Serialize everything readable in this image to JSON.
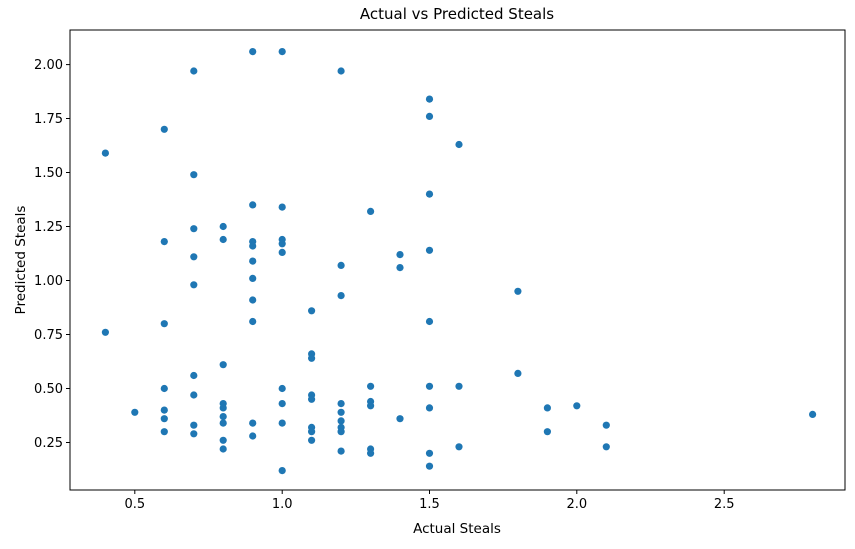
{
  "figure": {
    "title": "Actual vs Predicted Steals",
    "xlabel": "Actual Steals",
    "ylabel": "Predicted Steals"
  },
  "chart_data": {
    "type": "scatter",
    "title": "Actual vs Predicted Steals",
    "xlabel": "Actual Steals",
    "ylabel": "Predicted Steals",
    "xlim": [
      0.28,
      2.91
    ],
    "ylim": [
      0.03,
      2.16
    ],
    "grid": false,
    "legend_position": "none",
    "xticks": {
      "values": [
        0.5,
        1.0,
        1.5,
        2.0,
        2.5
      ],
      "labels": [
        "0.5",
        "1.0",
        "1.5",
        "2.0",
        "2.5"
      ]
    },
    "yticks": {
      "values": [
        0.25,
        0.5,
        0.75,
        1.0,
        1.25,
        1.5,
        1.75,
        2.0
      ],
      "labels": [
        "0.25",
        "0.50",
        "0.75",
        "1.00",
        "1.25",
        "1.50",
        "1.75",
        "2.00"
      ]
    },
    "marker": {
      "shape": "circle",
      "color": "#1f77b4",
      "radius_px": 3.6
    },
    "points": [
      [
        0.4,
        1.59
      ],
      [
        0.4,
        0.76
      ],
      [
        0.5,
        0.39
      ],
      [
        0.6,
        1.7
      ],
      [
        0.6,
        1.18
      ],
      [
        0.6,
        0.8
      ],
      [
        0.6,
        0.5
      ],
      [
        0.6,
        0.4
      ],
      [
        0.6,
        0.36
      ],
      [
        0.6,
        0.3
      ],
      [
        0.7,
        1.97
      ],
      [
        0.7,
        1.49
      ],
      [
        0.7,
        1.24
      ],
      [
        0.7,
        1.11
      ],
      [
        0.7,
        0.98
      ],
      [
        0.7,
        0.56
      ],
      [
        0.7,
        0.47
      ],
      [
        0.7,
        0.33
      ],
      [
        0.7,
        0.29
      ],
      [
        0.8,
        1.25
      ],
      [
        0.8,
        1.19
      ],
      [
        0.8,
        0.61
      ],
      [
        0.8,
        0.43
      ],
      [
        0.8,
        0.41
      ],
      [
        0.8,
        0.37
      ],
      [
        0.8,
        0.34
      ],
      [
        0.8,
        0.26
      ],
      [
        0.8,
        0.22
      ],
      [
        0.9,
        2.06
      ],
      [
        0.9,
        1.35
      ],
      [
        0.9,
        1.18
      ],
      [
        0.9,
        1.16
      ],
      [
        0.9,
        1.09
      ],
      [
        0.9,
        1.01
      ],
      [
        0.9,
        0.91
      ],
      [
        0.9,
        0.81
      ],
      [
        0.9,
        0.34
      ],
      [
        0.9,
        0.28
      ],
      [
        1.0,
        2.06
      ],
      [
        1.0,
        1.34
      ],
      [
        1.0,
        1.19
      ],
      [
        1.0,
        1.17
      ],
      [
        1.0,
        1.13
      ],
      [
        1.0,
        0.5
      ],
      [
        1.0,
        0.43
      ],
      [
        1.0,
        0.34
      ],
      [
        1.0,
        0.12
      ],
      [
        1.1,
        0.86
      ],
      [
        1.1,
        0.66
      ],
      [
        1.1,
        0.64
      ],
      [
        1.1,
        0.47
      ],
      [
        1.1,
        0.45
      ],
      [
        1.1,
        0.32
      ],
      [
        1.1,
        0.3
      ],
      [
        1.1,
        0.26
      ],
      [
        1.2,
        1.97
      ],
      [
        1.2,
        1.07
      ],
      [
        1.2,
        0.93
      ],
      [
        1.2,
        0.43
      ],
      [
        1.2,
        0.39
      ],
      [
        1.2,
        0.35
      ],
      [
        1.2,
        0.32
      ],
      [
        1.2,
        0.3
      ],
      [
        1.2,
        0.21
      ],
      [
        1.3,
        1.32
      ],
      [
        1.3,
        0.51
      ],
      [
        1.3,
        0.44
      ],
      [
        1.3,
        0.42
      ],
      [
        1.3,
        0.22
      ],
      [
        1.3,
        0.2
      ],
      [
        1.4,
        1.12
      ],
      [
        1.4,
        1.06
      ],
      [
        1.4,
        0.36
      ],
      [
        1.5,
        1.84
      ],
      [
        1.5,
        1.76
      ],
      [
        1.5,
        1.4
      ],
      [
        1.5,
        1.14
      ],
      [
        1.5,
        0.81
      ],
      [
        1.5,
        0.51
      ],
      [
        1.5,
        0.41
      ],
      [
        1.5,
        0.2
      ],
      [
        1.5,
        0.14
      ],
      [
        1.6,
        1.63
      ],
      [
        1.6,
        0.51
      ],
      [
        1.6,
        0.23
      ],
      [
        1.8,
        0.95
      ],
      [
        1.8,
        0.57
      ],
      [
        1.9,
        0.41
      ],
      [
        1.9,
        0.3
      ],
      [
        2.0,
        0.42
      ],
      [
        2.1,
        0.33
      ],
      [
        2.1,
        0.23
      ],
      [
        2.8,
        0.38
      ]
    ]
  }
}
